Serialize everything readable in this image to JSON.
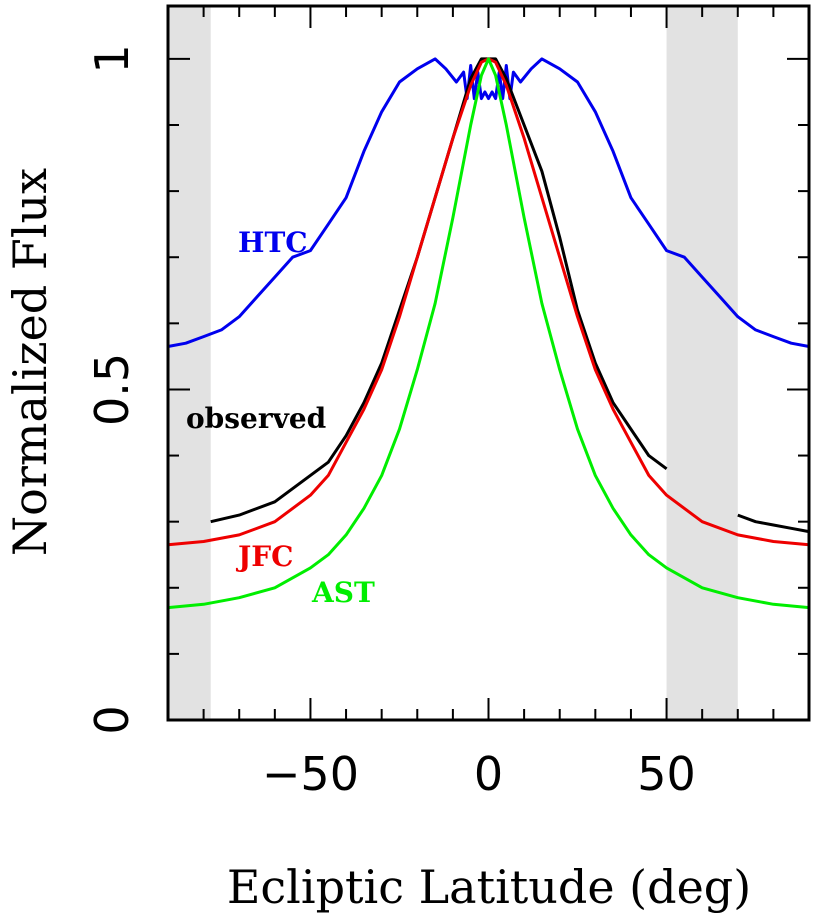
{
  "chart_data": {
    "type": "line",
    "xlabel": "Ecliptic Latitude (deg)",
    "ylabel": "Normalized Flux",
    "xlim": [
      -90,
      90
    ],
    "ylim": [
      0,
      1.08
    ],
    "x_ticks": [
      -50,
      0,
      50
    ],
    "x_tick_labels": [
      "−50",
      "0",
      "50"
    ],
    "y_ticks": [
      0,
      0.5,
      1
    ],
    "y_tick_labels": [
      "0",
      "0.5",
      "1"
    ],
    "grid": false,
    "shaded_regions": [
      [
        -90,
        -78
      ],
      [
        50,
        70
      ]
    ],
    "shade_color": "#e2e2e2",
    "series": [
      {
        "name": "HTC",
        "color": "#0000ee",
        "x": [
          -90,
          -85,
          -80,
          -75,
          -70,
          -65,
          -60,
          -55,
          -50,
          -45,
          -40,
          -35,
          -30,
          -25,
          -20,
          -15,
          -12,
          -9,
          -7,
          -6,
          -5,
          -4,
          -3,
          -2,
          -1,
          0,
          1,
          2,
          3,
          4,
          5,
          6,
          7,
          9,
          12,
          15,
          20,
          25,
          30,
          35,
          40,
          45,
          50,
          55,
          60,
          65,
          70,
          75,
          80,
          85,
          90
        ],
        "y": [
          0.565,
          0.57,
          0.58,
          0.59,
          0.61,
          0.64,
          0.67,
          0.7,
          0.71,
          0.75,
          0.79,
          0.86,
          0.92,
          0.965,
          0.985,
          1.0,
          0.985,
          0.965,
          0.98,
          0.94,
          0.99,
          0.94,
          0.98,
          0.94,
          0.95,
          0.94,
          0.95,
          0.94,
          0.98,
          0.94,
          0.99,
          0.94,
          0.98,
          0.965,
          0.985,
          1.0,
          0.985,
          0.965,
          0.92,
          0.86,
          0.79,
          0.75,
          0.71,
          0.7,
          0.67,
          0.64,
          0.61,
          0.59,
          0.58,
          0.57,
          0.565
        ]
      },
      {
        "name": "observed",
        "color": "#000000",
        "segments": [
          {
            "x": [
              -78,
              -70,
              -60,
              -50,
              -45,
              -40,
              -35,
              -30,
              -25,
              -20,
              -15,
              -10,
              -5,
              -2,
              0,
              2,
              5,
              10,
              15,
              20,
              25,
              30,
              35,
              40,
              45,
              50
            ],
            "y": [
              0.3,
              0.31,
              0.33,
              0.37,
              0.39,
              0.43,
              0.48,
              0.54,
              0.62,
              0.7,
              0.79,
              0.88,
              0.97,
              1.0,
              1.0,
              1.0,
              0.97,
              0.9,
              0.83,
              0.73,
              0.62,
              0.54,
              0.48,
              0.44,
              0.4,
              0.38
            ]
          },
          {
            "x": [
              70,
              75,
              80,
              85,
              90
            ],
            "y": [
              0.31,
              0.3,
              0.295,
              0.29,
              0.285
            ]
          }
        ]
      },
      {
        "name": "JFC",
        "color": "#ee0000",
        "x": [
          -90,
          -80,
          -70,
          -60,
          -50,
          -45,
          -40,
          -35,
          -30,
          -25,
          -20,
          -15,
          -10,
          -5,
          -2,
          0,
          2,
          5,
          10,
          15,
          20,
          25,
          30,
          35,
          40,
          45,
          50,
          60,
          70,
          80,
          90
        ],
        "y": [
          0.265,
          0.27,
          0.28,
          0.3,
          0.34,
          0.37,
          0.42,
          0.47,
          0.53,
          0.61,
          0.7,
          0.79,
          0.88,
          0.96,
          0.995,
          1.0,
          0.995,
          0.96,
          0.88,
          0.79,
          0.7,
          0.61,
          0.53,
          0.47,
          0.42,
          0.37,
          0.34,
          0.3,
          0.28,
          0.27,
          0.265
        ]
      },
      {
        "name": "AST",
        "color": "#00ee00",
        "x": [
          -90,
          -80,
          -70,
          -60,
          -50,
          -45,
          -40,
          -35,
          -30,
          -25,
          -20,
          -15,
          -10,
          -5,
          -2,
          0,
          2,
          5,
          10,
          15,
          20,
          25,
          30,
          35,
          40,
          45,
          50,
          60,
          70,
          80,
          90
        ],
        "y": [
          0.17,
          0.175,
          0.185,
          0.2,
          0.23,
          0.25,
          0.28,
          0.32,
          0.37,
          0.44,
          0.53,
          0.63,
          0.76,
          0.9,
          0.975,
          1.0,
          0.975,
          0.9,
          0.76,
          0.63,
          0.53,
          0.44,
          0.37,
          0.32,
          0.28,
          0.25,
          0.23,
          0.2,
          0.185,
          0.175,
          0.17
        ]
      }
    ]
  }
}
